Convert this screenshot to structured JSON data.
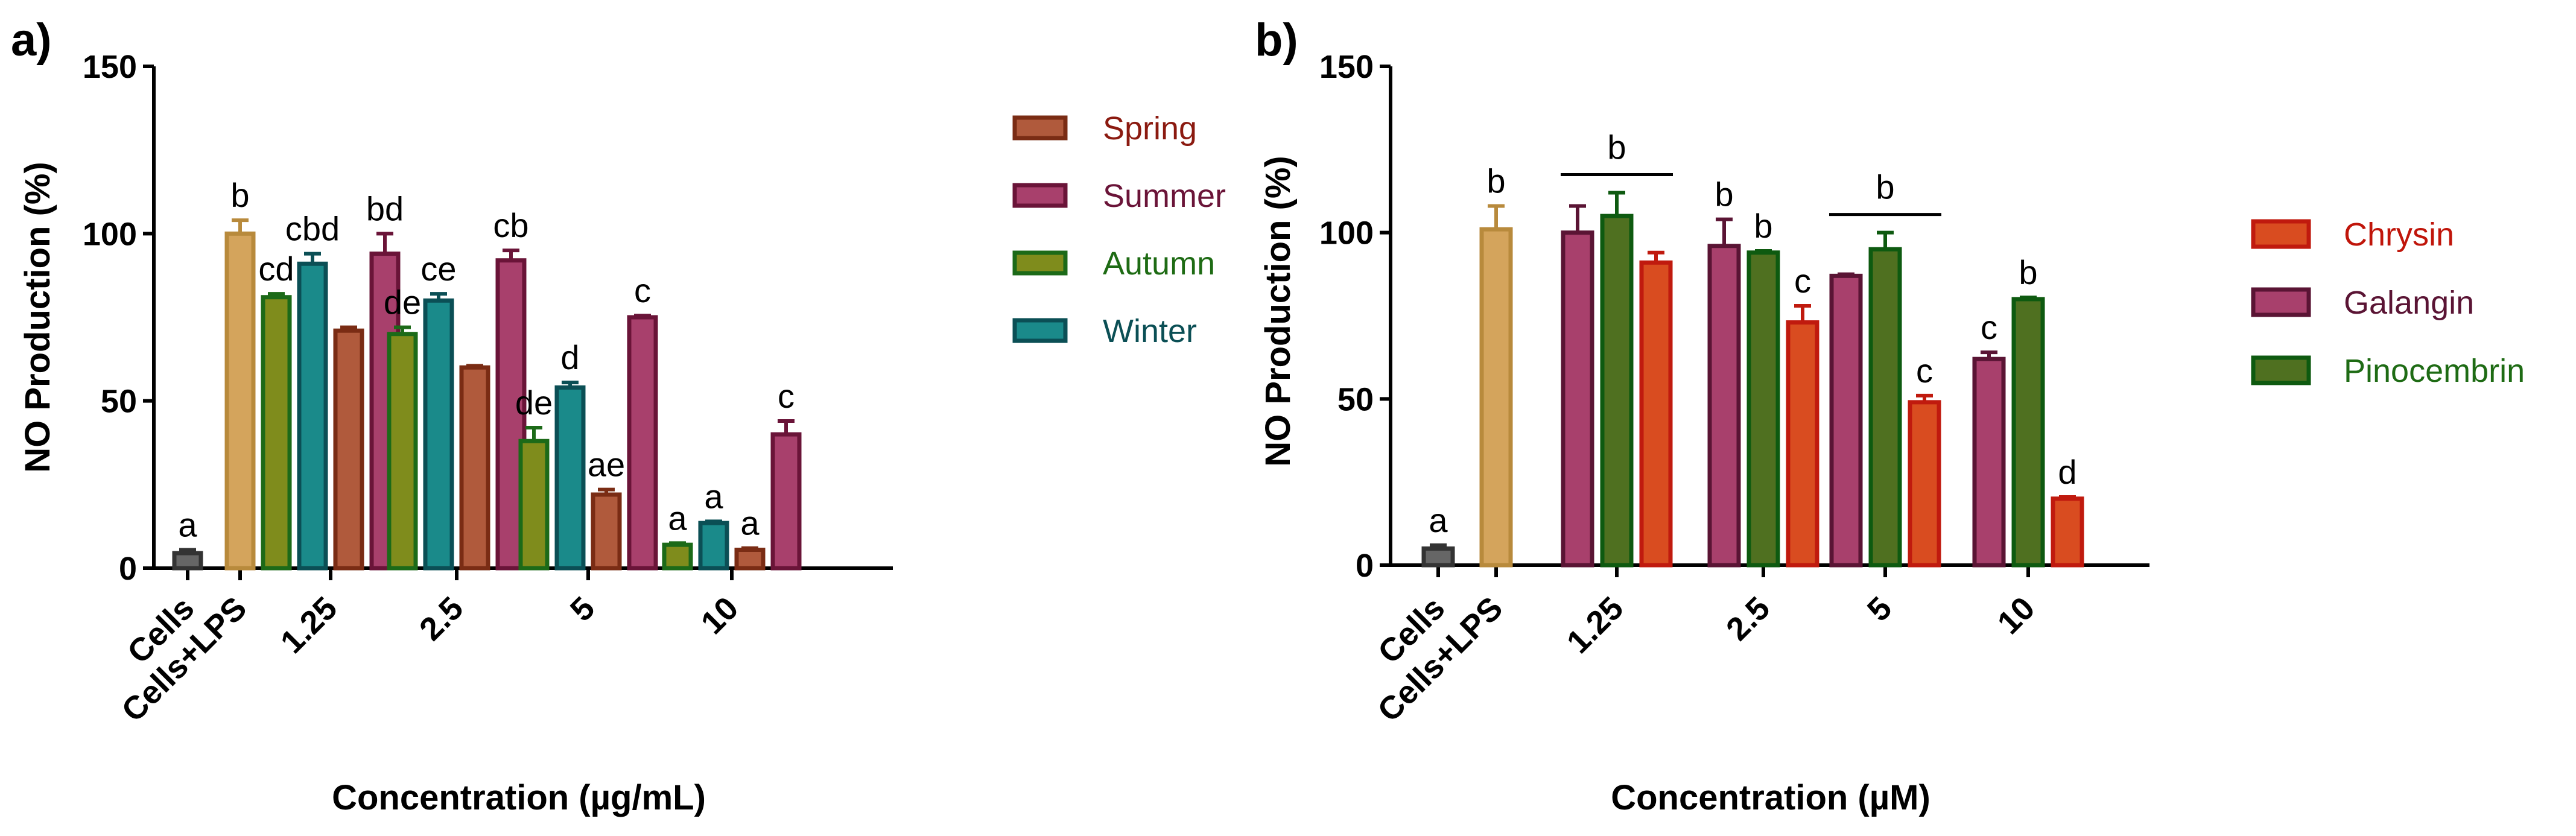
{
  "colors": {
    "Spring": {
      "fill": "#b05a3c",
      "stroke": "#7a2c14"
    },
    "Summer": {
      "fill": "#a8406c",
      "stroke": "#6a1438"
    },
    "Autumn": {
      "fill": "#7f8c1c",
      "stroke": "#1c6a18"
    },
    "Winter": {
      "fill": "#1a8a8a",
      "stroke": "#0b4f55"
    },
    "Chrysin": {
      "fill": "#d94c20",
      "stroke": "#c01a0e"
    },
    "Galangin": {
      "fill": "#a8406c",
      "stroke": "#5a1434"
    },
    "Pinocembrin": {
      "fill": "#4f7020",
      "stroke": "#0e5a10"
    },
    "Cells": {
      "fill": "#666666",
      "stroke": "#333333"
    },
    "Cells+LPS": {
      "fill": "#d4a45c",
      "stroke": "#b88a3c"
    },
    "legend_text": {
      "Spring": "#8b1a10",
      "Summer": "#6a1438",
      "Autumn": "#1e6b14",
      "Winter": "#0b4f55",
      "Chrysin": "#c0150a",
      "Galangin": "#5a1434",
      "Pinocembrin": "#1e6b14"
    }
  },
  "chart_data": [
    {
      "panel": "a)",
      "type": "bar",
      "ylabel": "NO Production (%)",
      "xlabel": "Concentration (µg/mL)",
      "ylim": [
        0,
        150
      ],
      "yticks": [
        "0",
        "50",
        "100",
        "150"
      ],
      "legend_position": "right",
      "legend": [
        "Spring",
        "Summer",
        "Autumn",
        "Winter"
      ],
      "groups": [
        {
          "label": "Cells",
          "bars": [
            {
              "series": "Cells",
              "value": 4.5,
              "err": 1.0,
              "sig": "a"
            }
          ]
        },
        {
          "label": "Cells+LPS",
          "bars": [
            {
              "series": "Cells+LPS",
              "value": 100,
              "err": 4.0,
              "sig": "b"
            }
          ]
        },
        {
          "label": "1.25",
          "bars": [
            {
              "series": "Autumn",
              "value": 81,
              "err": 1.0,
              "sig": "cd"
            },
            {
              "series": "Winter",
              "value": 91,
              "err": 3.0,
              "sig": "cbd"
            },
            {
              "series": "Spring",
              "value": 71,
              "err": 1.0,
              "sig": ""
            },
            {
              "series": "Summer",
              "value": 94,
              "err": 6.0,
              "sig": "bd"
            }
          ]
        },
        {
          "label": "2.5",
          "bars": [
            {
              "series": "Autumn",
              "value": 70,
              "err": 2.0,
              "sig": "de"
            },
            {
              "series": "Winter",
              "value": 80,
              "err": 2.0,
              "sig": "ce"
            },
            {
              "series": "Spring",
              "value": 60,
              "err": 0.5,
              "sig": ""
            },
            {
              "series": "Summer",
              "value": 92,
              "err": 3.0,
              "sig": "cb"
            }
          ]
        },
        {
          "label": "5",
          "bars": [
            {
              "series": "Autumn",
              "value": 38,
              "err": 4.0,
              "sig": "de"
            },
            {
              "series": "Winter",
              "value": 54,
              "err": 1.5,
              "sig": "d"
            },
            {
              "series": "Spring",
              "value": 22,
              "err": 1.5,
              "sig": "ae"
            },
            {
              "series": "Summer",
              "value": 75,
              "err": 0.5,
              "sig": "c"
            }
          ]
        },
        {
          "label": "10",
          "bars": [
            {
              "series": "Autumn",
              "value": 7,
              "err": 0.5,
              "sig": "a"
            },
            {
              "series": "Winter",
              "value": 13.5,
              "err": 0.5,
              "sig": "a"
            },
            {
              "series": "Spring",
              "value": 5.5,
              "err": 0.5,
              "sig": "a"
            },
            {
              "series": "Summer",
              "value": 40,
              "err": 4.0,
              "sig": "c"
            }
          ]
        }
      ]
    },
    {
      "panel": "b)",
      "type": "bar",
      "ylabel": "NO Production (%)",
      "xlabel": "Concentration (µM)",
      "ylim": [
        0,
        150
      ],
      "yticks": [
        "0",
        "50",
        "100",
        "150"
      ],
      "legend_position": "right",
      "legend": [
        "Chrysin",
        "Galangin",
        "Pinocembrin"
      ],
      "groups": [
        {
          "label": "Cells",
          "bars": [
            {
              "series": "Cells",
              "value": 5,
              "err": 1.0,
              "sig": "a"
            }
          ]
        },
        {
          "label": "Cells+LPS",
          "bars": [
            {
              "series": "Cells+LPS",
              "value": 101,
              "err": 7.0,
              "sig": "b"
            }
          ]
        },
        {
          "label": "1.25",
          "bracket": "b",
          "bars": [
            {
              "series": "Galangin",
              "value": 100,
              "err": 8.0,
              "sig": ""
            },
            {
              "series": "Pinocembrin",
              "value": 105,
              "err": 7.0,
              "sig": ""
            },
            {
              "series": "Chrysin",
              "value": 91,
              "err": 3.0,
              "sig": ""
            }
          ]
        },
        {
          "label": "2.5",
          "bars": [
            {
              "series": "Galangin",
              "value": 96,
              "err": 8.0,
              "sig": "b"
            },
            {
              "series": "Pinocembrin",
              "value": 94,
              "err": 0.5,
              "sig": "b"
            },
            {
              "series": "Chrysin",
              "value": 73,
              "err": 5.0,
              "sig": "c"
            }
          ]
        },
        {
          "label": "5",
          "bracket": "b",
          "bars": [
            {
              "series": "Galangin",
              "value": 87,
              "err": 0.5,
              "sig": ""
            },
            {
              "series": "Pinocembrin",
              "value": 95,
              "err": 5.0,
              "sig": ""
            },
            {
              "series": "Chrysin",
              "value": 49,
              "err": 2.0,
              "sig": "c"
            }
          ]
        },
        {
          "label": "10",
          "bars": [
            {
              "series": "Galangin",
              "value": 62,
              "err": 2.0,
              "sig": "c"
            },
            {
              "series": "Pinocembrin",
              "value": 80,
              "err": 0.5,
              "sig": "b"
            },
            {
              "series": "Chrysin",
              "value": 20,
              "err": 0.5,
              "sig": "d"
            }
          ]
        }
      ]
    }
  ]
}
